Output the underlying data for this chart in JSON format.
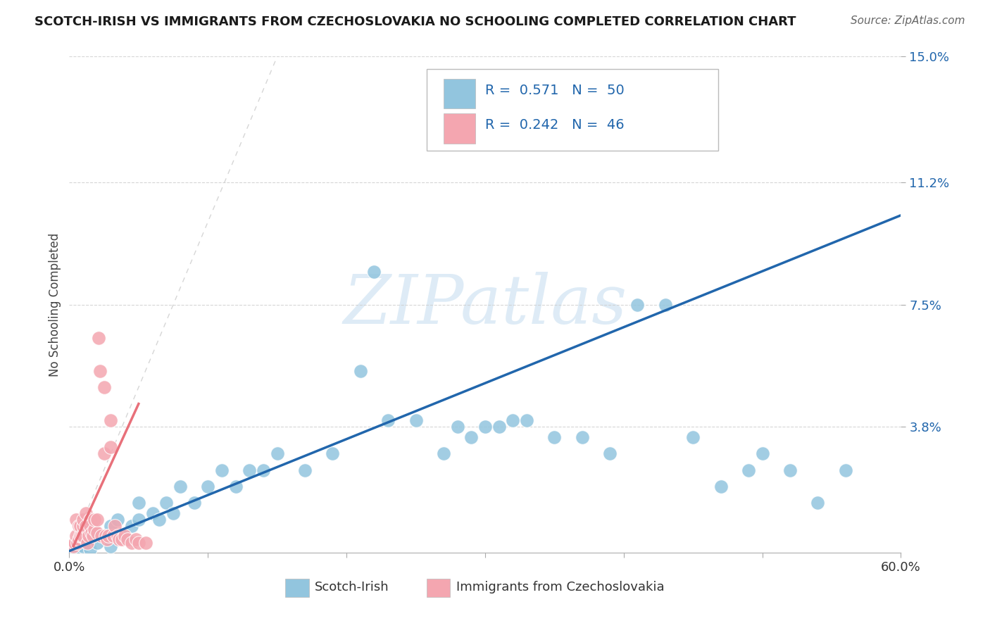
{
  "title": "SCOTCH-IRISH VS IMMIGRANTS FROM CZECHOSLOVAKIA NO SCHOOLING COMPLETED CORRELATION CHART",
  "source": "Source: ZipAtlas.com",
  "ylabel": "No Schooling Completed",
  "xlim": [
    0.0,
    0.6
  ],
  "ylim": [
    0.0,
    0.15
  ],
  "ytick_positions": [
    0.038,
    0.075,
    0.112,
    0.15
  ],
  "ytick_labels": [
    "3.8%",
    "7.5%",
    "11.2%",
    "15.0%"
  ],
  "legend_R1": "0.571",
  "legend_N1": "50",
  "legend_R2": "0.242",
  "legend_N2": "46",
  "blue_color": "#92C5DE",
  "pink_color": "#F4A6B0",
  "blue_line_color": "#2166AC",
  "pink_line_color": "#E8707A",
  "watermark_color": "#C8DFF0",
  "blue_x": [
    0.005,
    0.01,
    0.015,
    0.02,
    0.02,
    0.025,
    0.03,
    0.03,
    0.035,
    0.04,
    0.045,
    0.05,
    0.05,
    0.06,
    0.065,
    0.07,
    0.075,
    0.08,
    0.09,
    0.1,
    0.11,
    0.12,
    0.13,
    0.14,
    0.15,
    0.17,
    0.19,
    0.21,
    0.23,
    0.25,
    0.27,
    0.28,
    0.29,
    0.3,
    0.31,
    0.32,
    0.33,
    0.35,
    0.37,
    0.39,
    0.41,
    0.43,
    0.45,
    0.47,
    0.49,
    0.5,
    0.52,
    0.54,
    0.56,
    0.22
  ],
  "blue_y": [
    0.001,
    0.002,
    0.001,
    0.005,
    0.003,
    0.005,
    0.008,
    0.002,
    0.01,
    0.005,
    0.008,
    0.01,
    0.015,
    0.012,
    0.01,
    0.015,
    0.012,
    0.02,
    0.015,
    0.02,
    0.025,
    0.02,
    0.025,
    0.025,
    0.03,
    0.025,
    0.03,
    0.055,
    0.04,
    0.04,
    0.03,
    0.038,
    0.035,
    0.038,
    0.038,
    0.04,
    0.04,
    0.035,
    0.035,
    0.03,
    0.075,
    0.075,
    0.035,
    0.02,
    0.025,
    0.03,
    0.025,
    0.015,
    0.025,
    0.085
  ],
  "pink_x": [
    0.003,
    0.004,
    0.005,
    0.005,
    0.006,
    0.007,
    0.007,
    0.008,
    0.008,
    0.009,
    0.01,
    0.01,
    0.01,
    0.012,
    0.012,
    0.013,
    0.014,
    0.015,
    0.015,
    0.016,
    0.017,
    0.018,
    0.018,
    0.02,
    0.02,
    0.021,
    0.022,
    0.023,
    0.025,
    0.025,
    0.026,
    0.027,
    0.028,
    0.03,
    0.03,
    0.032,
    0.033,
    0.035,
    0.036,
    0.038,
    0.04,
    0.042,
    0.045,
    0.048,
    0.05,
    0.055
  ],
  "pink_y": [
    0.002,
    0.003,
    0.005,
    0.01,
    0.003,
    0.004,
    0.008,
    0.005,
    0.008,
    0.005,
    0.005,
    0.008,
    0.01,
    0.008,
    0.012,
    0.003,
    0.005,
    0.01,
    0.008,
    0.006,
    0.005,
    0.007,
    0.01,
    0.006,
    0.01,
    0.065,
    0.055,
    0.005,
    0.03,
    0.05,
    0.005,
    0.004,
    0.005,
    0.032,
    0.04,
    0.005,
    0.008,
    0.005,
    0.004,
    0.004,
    0.005,
    0.004,
    0.003,
    0.004,
    0.003,
    0.003
  ],
  "blue_line_x": [
    0.0,
    0.6
  ],
  "blue_line_y": [
    0.0005,
    0.102
  ],
  "pink_line_x": [
    0.003,
    0.05
  ],
  "pink_line_y": [
    0.002,
    0.045
  ],
  "ref_line_x": [
    0.0,
    0.15
  ],
  "ref_line_y": [
    0.0,
    0.15
  ]
}
